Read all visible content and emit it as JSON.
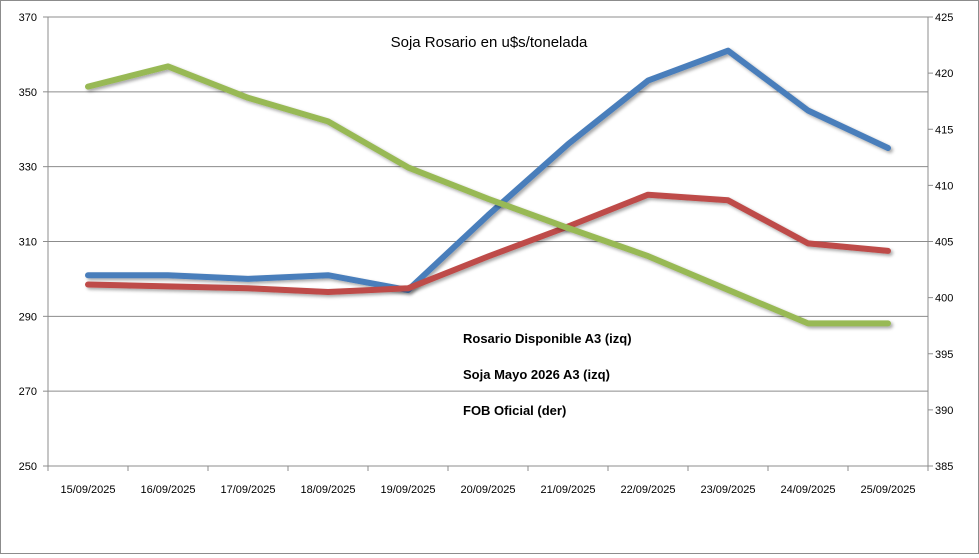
{
  "chart_data": {
    "type": "line",
    "title": "Soja Rosario en u$s/tonelada",
    "categories": [
      "15/09/2025",
      "16/09/2025",
      "17/09/2025",
      "18/09/2025",
      "19/09/2025",
      "20/09/2025",
      "21/09/2025",
      "22/09/2025",
      "23/09/2025",
      "24/09/2025",
      "25/09/2025"
    ],
    "y_left": {
      "min": 250,
      "max": 370,
      "ticks": [
        250,
        270,
        290,
        310,
        330,
        350,
        370
      ]
    },
    "y_right": {
      "min": 385,
      "max": 425,
      "ticks": [
        385,
        390,
        395,
        400,
        405,
        410,
        415,
        420,
        425
      ]
    },
    "grid": true,
    "series": [
      {
        "name": "Rosario Disponible A3 (izq)",
        "axis": "left",
        "color": "#4a7ebb",
        "values": [
          301,
          301,
          300,
          301,
          297,
          317,
          336,
          353,
          361,
          345,
          335
        ]
      },
      {
        "name": "Soja Mayo 2026 A3 (izq)",
        "axis": "left",
        "color": "#be4b48",
        "values": [
          298.5,
          298,
          297.5,
          296.5,
          297.5,
          306,
          314,
          322.5,
          321,
          309.5,
          307.5
        ]
      },
      {
        "name": "FOB Oficial (der)",
        "axis": "right",
        "color": "#98b954",
        "values": [
          418.8,
          420.6,
          417.8,
          415.7,
          411.6,
          408.8,
          406.2,
          403.7,
          400.7,
          397.7,
          397.7
        ]
      }
    ],
    "legend_position": "center"
  }
}
